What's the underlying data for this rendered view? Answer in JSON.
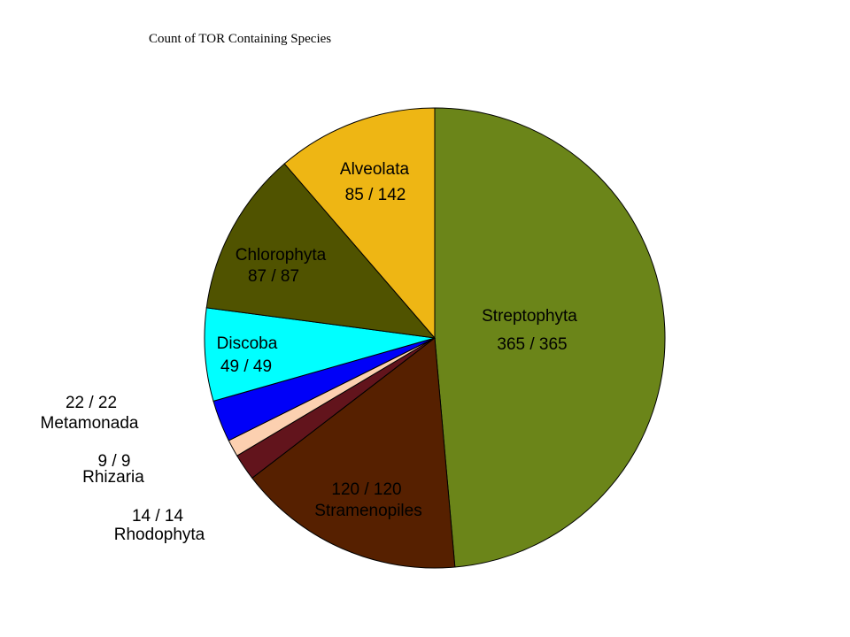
{
  "chart_data": {
    "type": "pie",
    "title": "Count of TOR Containing Species",
    "start": "12 o'clock",
    "direction": "clockwise",
    "slices": [
      {
        "name": "Streptophyta",
        "value": 365,
        "value_label": "365 / 365",
        "color": "#6b8519",
        "label_position": "inside"
      },
      {
        "name": "Stramenopiles",
        "value": 120,
        "value_label": "120 / 120",
        "color": "#562000",
        "label_position": "inside",
        "value_first": true
      },
      {
        "name": "Rhodophyta",
        "value": 14,
        "value_label": "14 / 14",
        "color": "#62141c",
        "label_position": "outside",
        "value_first": true
      },
      {
        "name": "Rhizaria",
        "value": 9,
        "value_label": "9 / 9",
        "color": "#fcd0b0",
        "label_position": "outside",
        "value_first": true
      },
      {
        "name": "Metamonada",
        "value": 22,
        "value_label": "22 / 22",
        "color": "#0000f8",
        "label_position": "outside",
        "value_first": true
      },
      {
        "name": "Discoba",
        "value": 49,
        "value_label": "49 / 49",
        "color": "#00ffff",
        "label_position": "inside"
      },
      {
        "name": "Chlorophyta",
        "value": 87,
        "value_label": "87 / 87",
        "color": "#505300",
        "label_position": "inside"
      },
      {
        "name": "Alveolata",
        "value": 85,
        "value_label": "85 / 142",
        "color": "#eeb614",
        "label_position": "inside"
      }
    ]
  }
}
